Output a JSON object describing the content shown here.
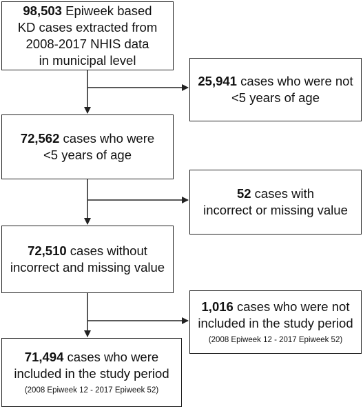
{
  "main_boxes": [
    {
      "count": "98,503",
      "lines": [
        " Epiweek based",
        "KD cases extracted from",
        "2008-2017 NHIS data",
        "in municipal level"
      ]
    },
    {
      "count": "72,562",
      "lines": [
        " cases who were",
        "<5 years of age"
      ]
    },
    {
      "count": "72,510",
      "lines": [
        " cases without",
        "incorrect and missing value"
      ]
    },
    {
      "count": "71,494",
      "lines": [
        " cases who were",
        "included in the study period"
      ],
      "note": "(2008 Epiweek 12 - 2017 Epiweek 52)"
    }
  ],
  "side_boxes": [
    {
      "count": "25,941",
      "lines": [
        " cases who were not",
        "<5 years of age"
      ]
    },
    {
      "count": "52",
      "lines": [
        " cases with",
        "incorrect or missing value"
      ]
    },
    {
      "count": "1,016",
      "lines": [
        " cases who were not",
        "included in the study period"
      ],
      "note": "(2008 Epiweek 12 - 2017 Epiweek 52)"
    }
  ]
}
